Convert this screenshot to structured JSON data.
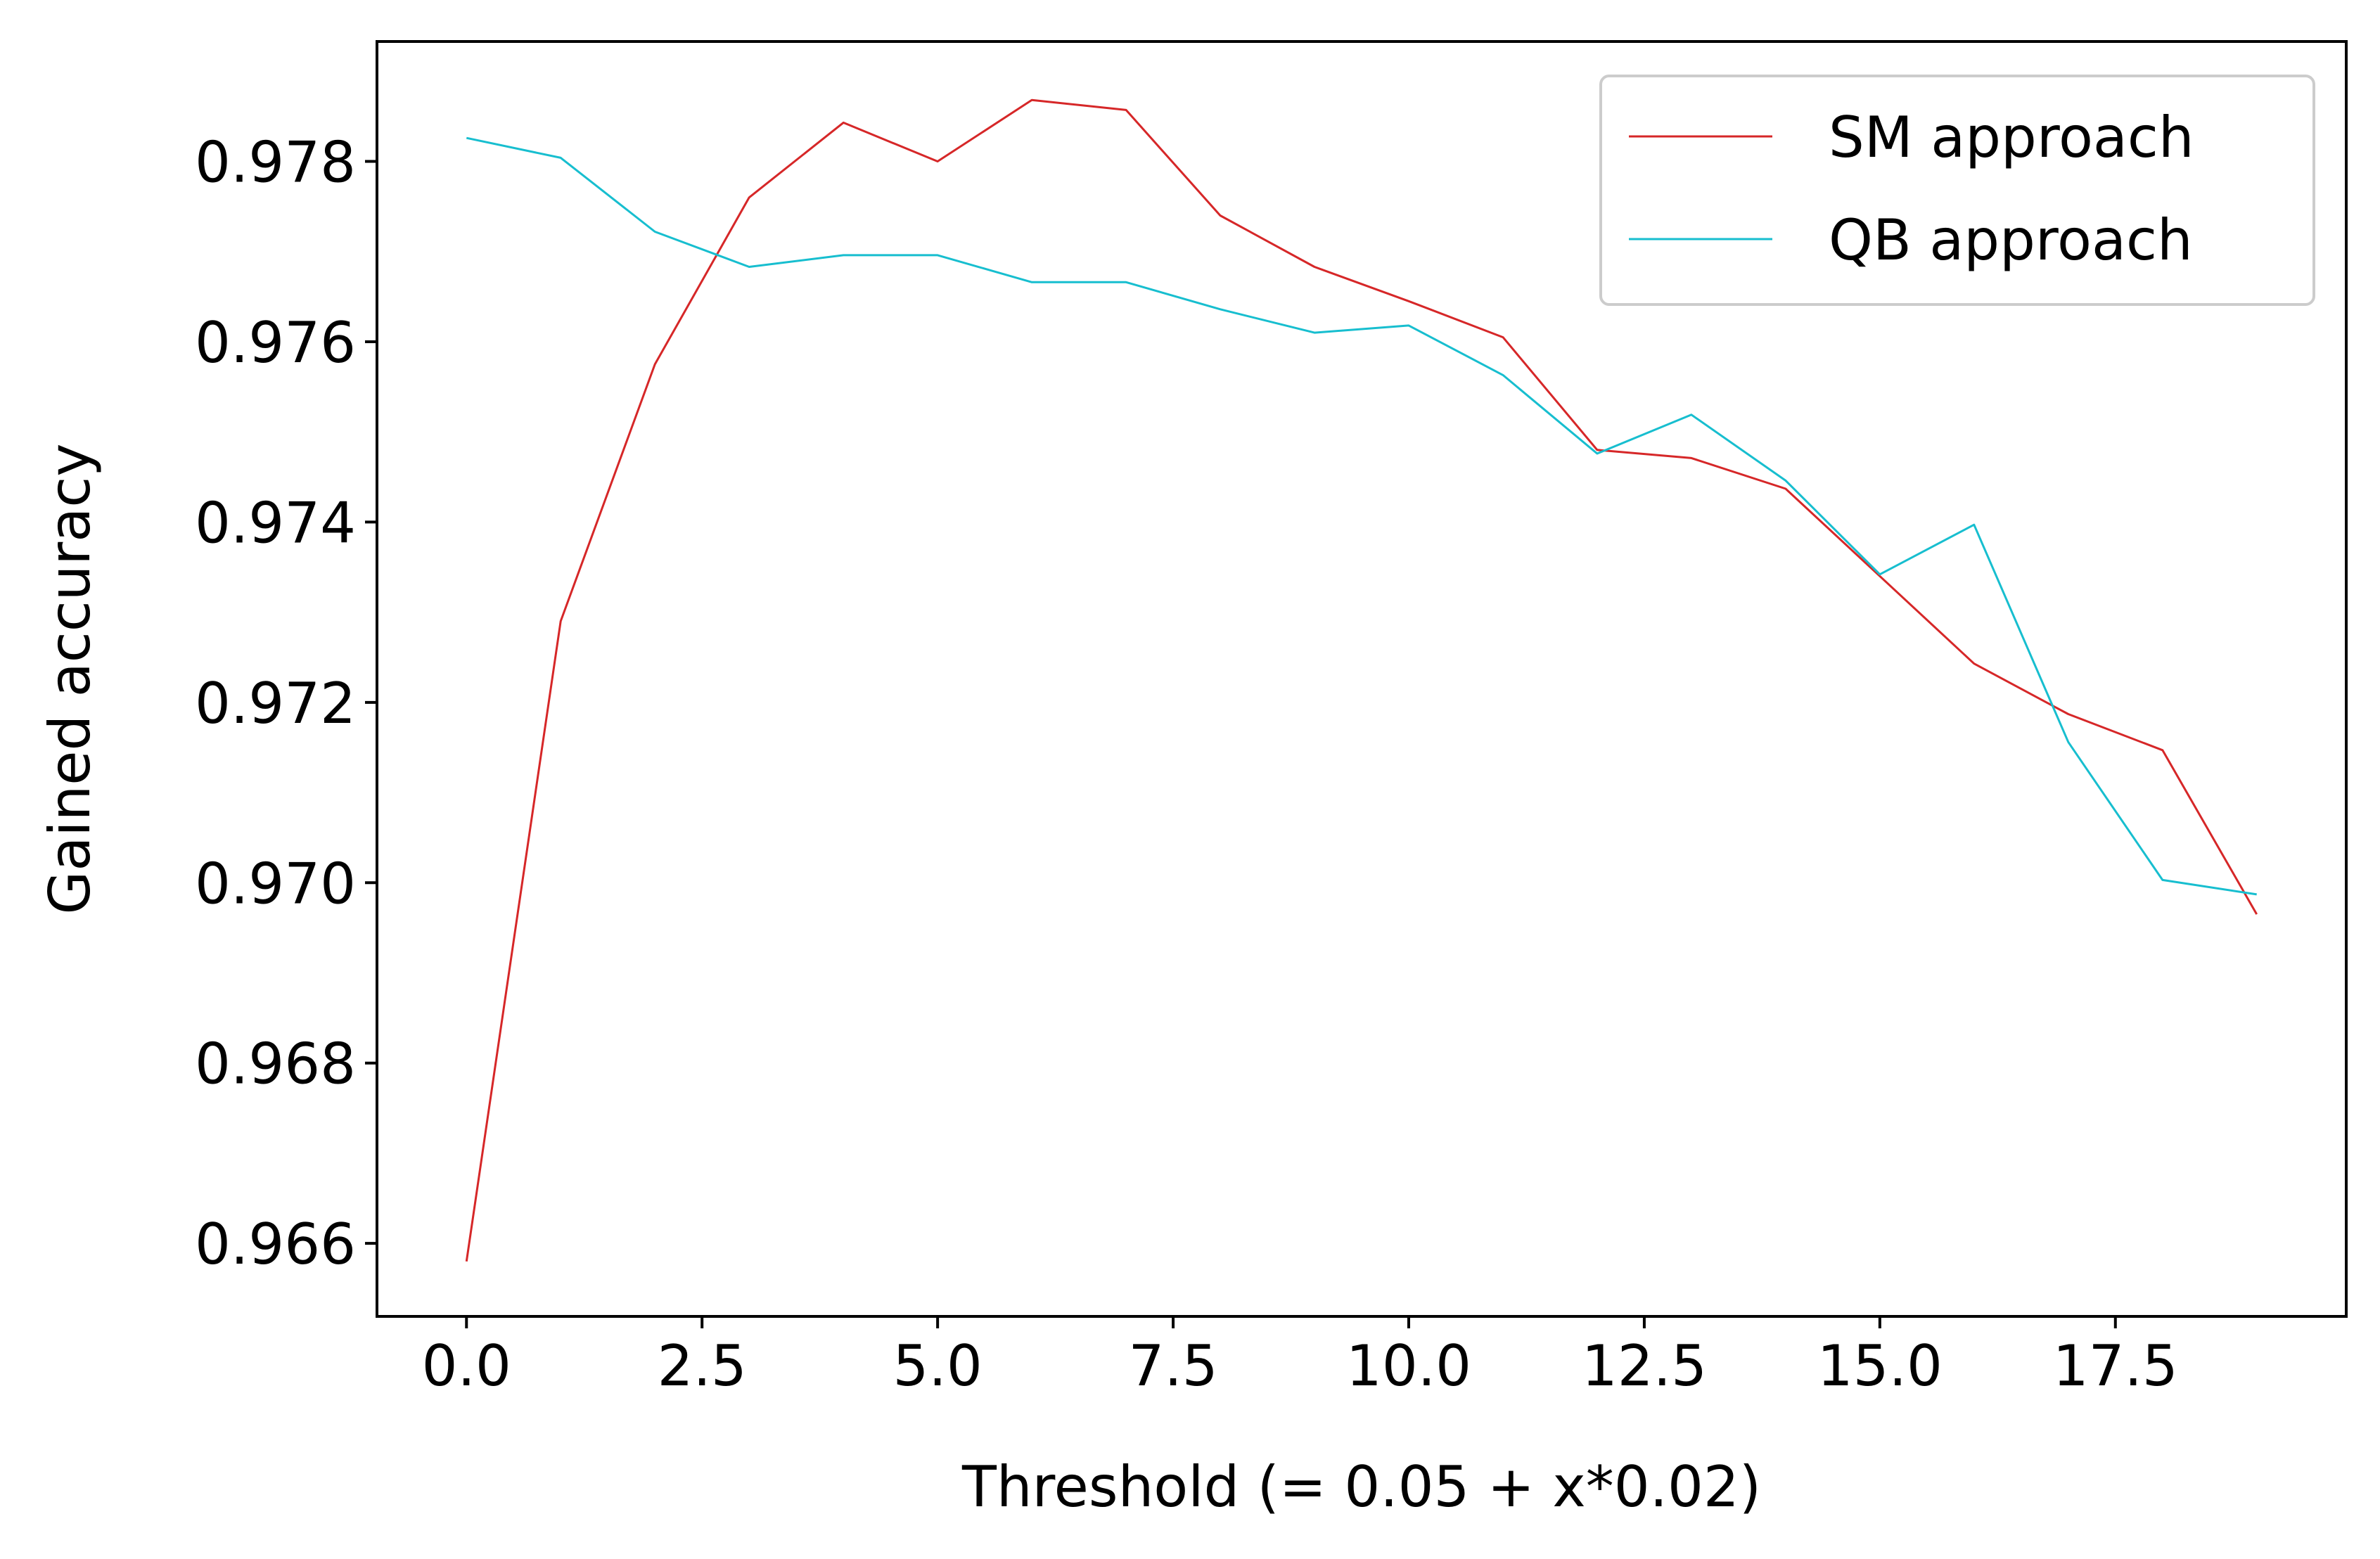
{
  "chart_data": {
    "type": "line",
    "title": "",
    "xlabel": "Threshold (= 0.05 + x*0.02)",
    "ylabel": "Gained accuracy",
    "xlim": [
      -0.95,
      19.95
    ],
    "ylim": [
      0.96519,
      0.97933
    ],
    "x_ticks": [
      0.0,
      2.5,
      5.0,
      7.5,
      10.0,
      12.5,
      15.0,
      17.5
    ],
    "x_tick_labels": [
      "0.0",
      "2.5",
      "5.0",
      "7.5",
      "10.0",
      "12.5",
      "15.0",
      "17.5"
    ],
    "y_ticks": [
      0.966,
      0.968,
      0.97,
      0.972,
      0.974,
      0.976,
      0.978
    ],
    "y_tick_labels": [
      "0.966",
      "0.968",
      "0.970",
      "0.972",
      "0.974",
      "0.976",
      "0.978"
    ],
    "grid": false,
    "legend_position": "top-right",
    "x": [
      0,
      1,
      2,
      3,
      4,
      5,
      6,
      7,
      8,
      9,
      10,
      11,
      12,
      13,
      14,
      15,
      16,
      17,
      18,
      19
    ],
    "series": [
      {
        "name": "SM approach",
        "color": "#d62728",
        "values": [
          0.9658,
          0.9729,
          0.97575,
          0.9776,
          0.97843,
          0.978,
          0.97868,
          0.97857,
          0.9774,
          0.97683,
          0.97645,
          0.97605,
          0.9748,
          0.97471,
          0.97437,
          0.9734,
          0.97243,
          0.97187,
          0.97147,
          0.96965
        ]
      },
      {
        "name": "QB approach",
        "color": "#17becf",
        "values": [
          0.97826,
          0.97804,
          0.97722,
          0.97683,
          0.97696,
          0.97696,
          0.97666,
          0.97666,
          0.97636,
          0.9761,
          0.97618,
          0.97563,
          0.97476,
          0.97519,
          0.97446,
          0.97342,
          0.97397,
          0.97156,
          0.97003,
          0.96987
        ]
      }
    ]
  }
}
